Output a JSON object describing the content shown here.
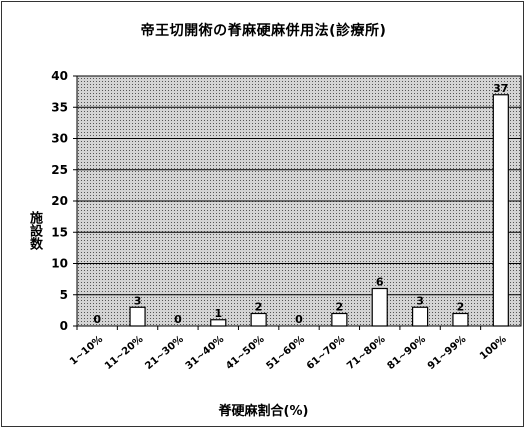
{
  "chart_data": {
    "type": "bar",
    "title": "帝王切開術の脊麻硬麻併用法(診療所)",
    "xlabel": "脊硬麻割合(%)",
    "ylabel": "施設数",
    "categories": [
      "1~10%",
      "11~20%",
      "21~30%",
      "31~40%",
      "41~50%",
      "51~60%",
      "61~70%",
      "71~80%",
      "81~90%",
      "91~99%",
      "100%"
    ],
    "values": [
      0,
      3,
      0,
      1,
      2,
      0,
      2,
      6,
      3,
      2,
      37
    ],
    "data_labels": [
      "0",
      "3",
      "0",
      "1",
      "2",
      "0",
      "2",
      "6",
      "3",
      "2",
      "37"
    ],
    "ylim": [
      0,
      40
    ],
    "yticks": [
      "0",
      "5",
      "10",
      "15",
      "20",
      "25",
      "30",
      "35",
      "40"
    ],
    "grid": true,
    "legend": "none",
    "colors": {
      "plot_fill": "#bdbdbd",
      "bar_fill": "#ffffff",
      "stroke": "#000000"
    }
  }
}
